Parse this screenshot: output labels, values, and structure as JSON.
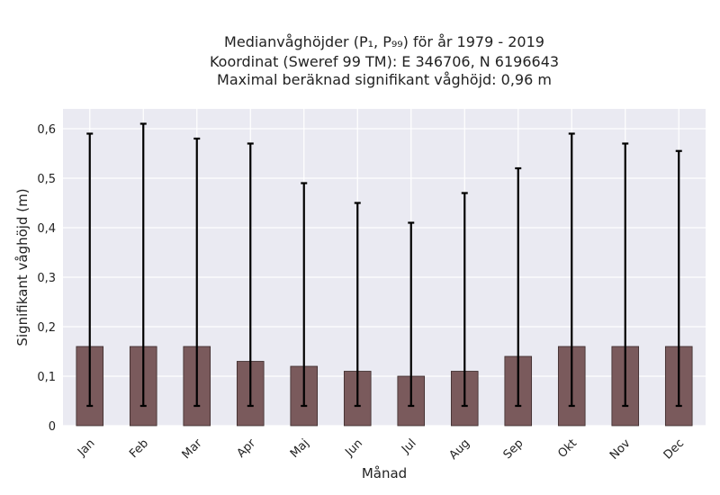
{
  "chart_data": {
    "type": "bar",
    "title_lines": [
      "Medianvåghöjder (P₁, P₉₉) för år 1979 - 2019",
      "Koordinat (Sweref 99 TM): E 346706, N 6196643",
      "Maximal beräknad signifikant våghöjd: 0,96 m"
    ],
    "xlabel": "Månad",
    "ylabel": "Signifikant våghöjd (m)",
    "ylim": [
      0,
      0.64
    ],
    "yticks": [
      0,
      0.1,
      0.2,
      0.3,
      0.4,
      0.5,
      0.6
    ],
    "ytick_labels": [
      "0",
      "0,1",
      "0,2",
      "0,3",
      "0,4",
      "0,5",
      "0,6"
    ],
    "categories": [
      "Jan",
      "Feb",
      "Mar",
      "Apr",
      "Maj",
      "Jun",
      "Jul",
      "Aug",
      "Sep",
      "Okt",
      "Nov",
      "Dec"
    ],
    "values": [
      0.16,
      0.16,
      0.16,
      0.13,
      0.12,
      0.11,
      0.1,
      0.11,
      0.14,
      0.16,
      0.16,
      0.16
    ],
    "error_low": [
      0.04,
      0.04,
      0.04,
      0.04,
      0.04,
      0.04,
      0.04,
      0.04,
      0.04,
      0.04,
      0.04,
      0.04
    ],
    "error_high": [
      0.59,
      0.61,
      0.58,
      0.57,
      0.49,
      0.45,
      0.41,
      0.47,
      0.52,
      0.59,
      0.57,
      0.555
    ],
    "grid": true,
    "colors": {
      "bar": "#7a5a5c",
      "bar_edge": "#3a2a2a",
      "error": "#000000",
      "plot_bg": "#eaeaf2",
      "grid": "#ffffff"
    }
  }
}
